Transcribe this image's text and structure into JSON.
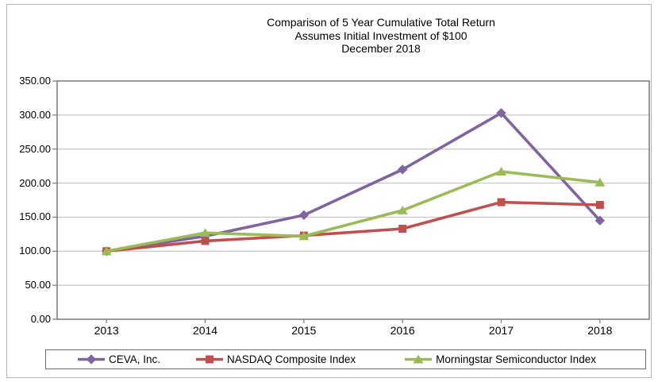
{
  "title": {
    "line1": "Comparison of 5 Year Cumulative Total Return",
    "line2": "Assumes Initial Investment of $100",
    "line3": "December 2018"
  },
  "chart_data": {
    "type": "line",
    "x": [
      "2013",
      "2014",
      "2015",
      "2016",
      "2017",
      "2018"
    ],
    "series": [
      {
        "name": "CEVA, Inc.",
        "color": "#8064A2",
        "marker": "diamond",
        "values": [
          100,
          122,
          153,
          220,
          303,
          145
        ]
      },
      {
        "name": "NASDAQ Composite Index",
        "color": "#C0504D",
        "marker": "square",
        "values": [
          100,
          115,
          123,
          133,
          172,
          168
        ]
      },
      {
        "name": "Morningstar Semiconductor Index",
        "color": "#9BBB59",
        "marker": "triangle",
        "values": [
          100,
          127,
          122,
          160,
          217,
          201
        ]
      }
    ],
    "ylim": [
      0,
      350
    ],
    "ytick_step": 50,
    "ytick_labels": [
      "0.00",
      "50.00",
      "100.00",
      "150.00",
      "200.00",
      "250.00",
      "300.00",
      "350.00"
    ],
    "grid": true,
    "legend_position": "bottom",
    "colors": {
      "gridline": "#c6c6c6",
      "axis": "#808080",
      "frame": "#b4b4b4",
      "legend_border": "#6e6e6e",
      "background": "#ffffff"
    }
  }
}
